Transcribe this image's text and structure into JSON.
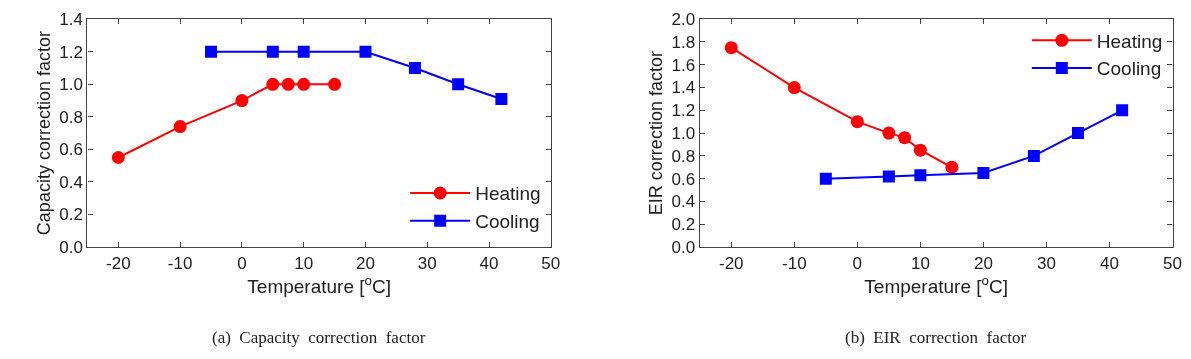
{
  "chart_data": [
    {
      "type": "line",
      "xlabel": "Temperature [$^{o}$C]",
      "ylabel": "Capacity correction factor",
      "annotations": [
        "(a)  Capacity  correction  factor"
      ],
      "xlim": [
        -25,
        50
      ],
      "xticks": [
        -20,
        -10,
        0,
        10,
        20,
        30,
        40,
        50
      ],
      "ylim": [
        0,
        1.4
      ],
      "yticks": [
        {
          "value": 0,
          "label": "0.0"
        },
        0.2,
        0.4,
        0.6,
        0.8,
        {
          "value": 1,
          "label": "1.0"
        },
        1.2,
        1.4
      ],
      "legend": "bottom right",
      "series": [
        {
          "name": "Heating",
          "color": "#ff0000",
          "marker": "circle",
          "x": [
            -20,
            -10,
            0,
            5,
            7.5,
            10,
            15
          ],
          "values": [
            0.55,
            0.74,
            0.9,
            1.0,
            1.0,
            1.0,
            1.0
          ]
        },
        {
          "name": "Cooling",
          "color": "#0000ff",
          "marker": "square",
          "x": [
            -5,
            5,
            10,
            20,
            28,
            35,
            42
          ],
          "values": [
            1.2,
            1.2,
            1.2,
            1.2,
            1.1,
            1.0,
            0.91
          ]
        }
      ]
    },
    {
      "type": "line",
      "xlabel": "Temperature [$^{o}$C]",
      "ylabel": "EIR correction factor",
      "annotations": [
        "(b)  EIR  correction  factor"
      ],
      "xlim": [
        -25,
        50
      ],
      "xticks": [
        -20,
        -10,
        0,
        10,
        20,
        30,
        40,
        50
      ],
      "ylim": [
        0,
        2.0
      ],
      "yticks": [
        {
          "value": 0,
          "label": "0.0"
        },
        0.2,
        0.4,
        0.6,
        0.8,
        {
          "value": 1,
          "label": "1.0"
        },
        1.2,
        1.4,
        1.6,
        1.8,
        {
          "value": 2,
          "label": "2.0"
        }
      ],
      "legend": "top right",
      "series": [
        {
          "name": "Heating",
          "color": "#ff0000",
          "marker": "circle",
          "x": [
            -20,
            -10,
            0,
            5,
            7.5,
            10,
            15
          ],
          "values": [
            1.75,
            1.4,
            1.1,
            1.0,
            0.96,
            0.85,
            0.7
          ]
        },
        {
          "name": "Cooling",
          "color": "#0000ff",
          "marker": "square",
          "x": [
            -5,
            5,
            10,
            20,
            28,
            35,
            42
          ],
          "values": [
            0.6,
            0.62,
            0.63,
            0.65,
            0.8,
            1.0,
            1.2
          ]
        }
      ]
    }
  ]
}
